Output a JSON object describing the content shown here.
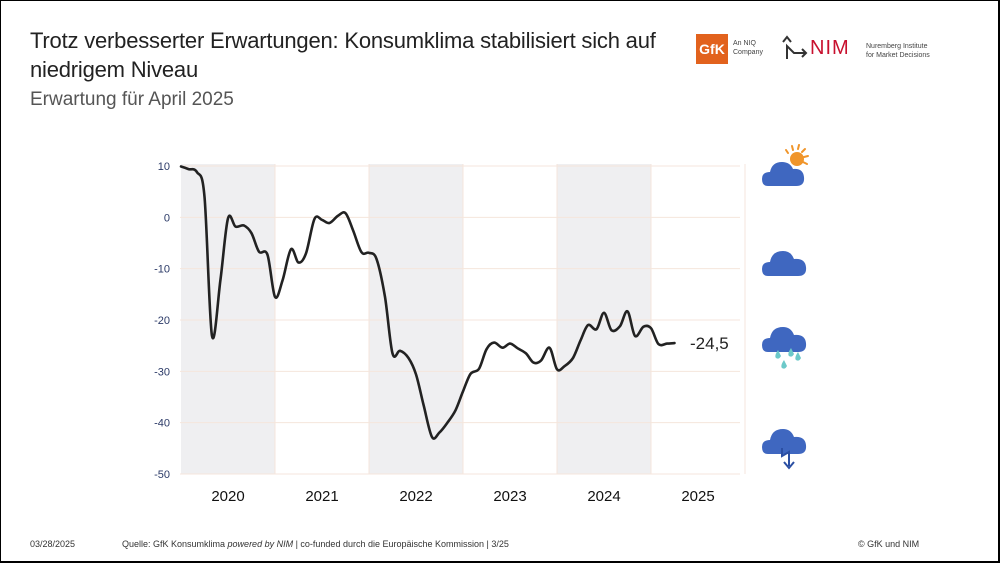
{
  "header": {
    "title": "Trotz verbesserter Erwartungen:  Konsumklima stabilisiert sich auf niedrigem Niveau",
    "subtitle": "Erwartung für April 2025"
  },
  "logos": {
    "gfk": {
      "label": "GfK",
      "tagline_1": "An NIQ",
      "tagline_2": "Company",
      "color": "#e2621d"
    },
    "nim": {
      "label": "NIM",
      "tagline_1": "Nuremberg Institute",
      "tagline_2": "for Market Decisions",
      "color": "#c8102e"
    }
  },
  "weather_icons": [
    {
      "name": "partly-sunny-icon"
    },
    {
      "name": "cloud-icon"
    },
    {
      "name": "rain-cloud-icon"
    },
    {
      "name": "storm-cloud-icon"
    }
  ],
  "footer": {
    "date": "03/28/2025",
    "source_prefix": "Quelle: GfK Konsumklima ",
    "source_italic": "powered by NIM",
    "source_suffix": " | co-funded durch die Europäische Kommission | 3/25",
    "copyright": "© GfK und NIM"
  },
  "colors": {
    "line": "#222222",
    "shade": "#efeff1",
    "grid": "#f5e6dc",
    "axis_text": "#2b3a67",
    "cloud": "#3f67c0",
    "sun": "#f0952a",
    "rain": "#6cc9c9"
  },
  "chart_data": {
    "type": "line",
    "title": "Erwartung für April 2025",
    "xlabel": "",
    "ylabel": "",
    "ylim": [
      -50,
      10
    ],
    "yticks": [
      "10",
      "0",
      "-10",
      "-20",
      "-30",
      "-40",
      "-50"
    ],
    "ytick_values": [
      10,
      0,
      -10,
      -20,
      -30,
      -40,
      -50
    ],
    "year_labels": [
      "2020",
      "2021",
      "2022",
      "2023",
      "2024",
      "2025"
    ],
    "shaded_years": [
      "2020",
      "2022",
      "2024"
    ],
    "grid": true,
    "end_label": "-24,5",
    "series": [
      {
        "name": "Konsumklima",
        "x": [
          2020.0,
          2020.08,
          2020.17,
          2020.25,
          2020.33,
          2020.42,
          2020.5,
          2020.58,
          2020.67,
          2020.75,
          2020.83,
          2020.92,
          2021.0,
          2021.08,
          2021.17,
          2021.25,
          2021.33,
          2021.42,
          2021.5,
          2021.58,
          2021.67,
          2021.75,
          2021.83,
          2021.92,
          2022.0,
          2022.08,
          2022.17,
          2022.25,
          2022.33,
          2022.42,
          2022.5,
          2022.58,
          2022.67,
          2022.75,
          2022.83,
          2022.92,
          2023.0,
          2023.08,
          2023.17,
          2023.25,
          2023.33,
          2023.42,
          2023.5,
          2023.58,
          2023.67,
          2023.75,
          2023.83,
          2023.92,
          2024.0,
          2024.08,
          2024.17,
          2024.25,
          2024.33,
          2024.42,
          2024.5,
          2024.58,
          2024.67,
          2024.75,
          2024.83,
          2024.92,
          2025.0,
          2025.08,
          2025.17,
          2025.25
        ],
        "values": [
          9.9,
          9.4,
          8.8,
          4.0,
          -23.1,
          -12.1,
          -0.2,
          -1.8,
          -1.6,
          -3.1,
          -6.7,
          -7.3,
          -15.5,
          -12.3,
          -6.2,
          -8.8,
          -7.0,
          -0.3,
          -0.5,
          -1.1,
          0.3,
          0.8,
          -2.5,
          -6.8,
          -6.9,
          -8.1,
          -15.5,
          -26.5,
          -26.0,
          -27.4,
          -30.6,
          -36.5,
          -42.8,
          -41.9,
          -40.1,
          -37.6,
          -33.9,
          -30.5,
          -29.5,
          -25.7,
          -24.4,
          -25.4,
          -24.6,
          -25.5,
          -26.5,
          -28.3,
          -27.9,
          -25.4,
          -29.6,
          -29.0,
          -27.4,
          -24.0,
          -21.0,
          -21.8,
          -18.6,
          -22.0,
          -21.2,
          -18.3,
          -23.1,
          -21.3,
          -21.6,
          -24.7,
          -24.6,
          -24.5
        ]
      }
    ]
  }
}
